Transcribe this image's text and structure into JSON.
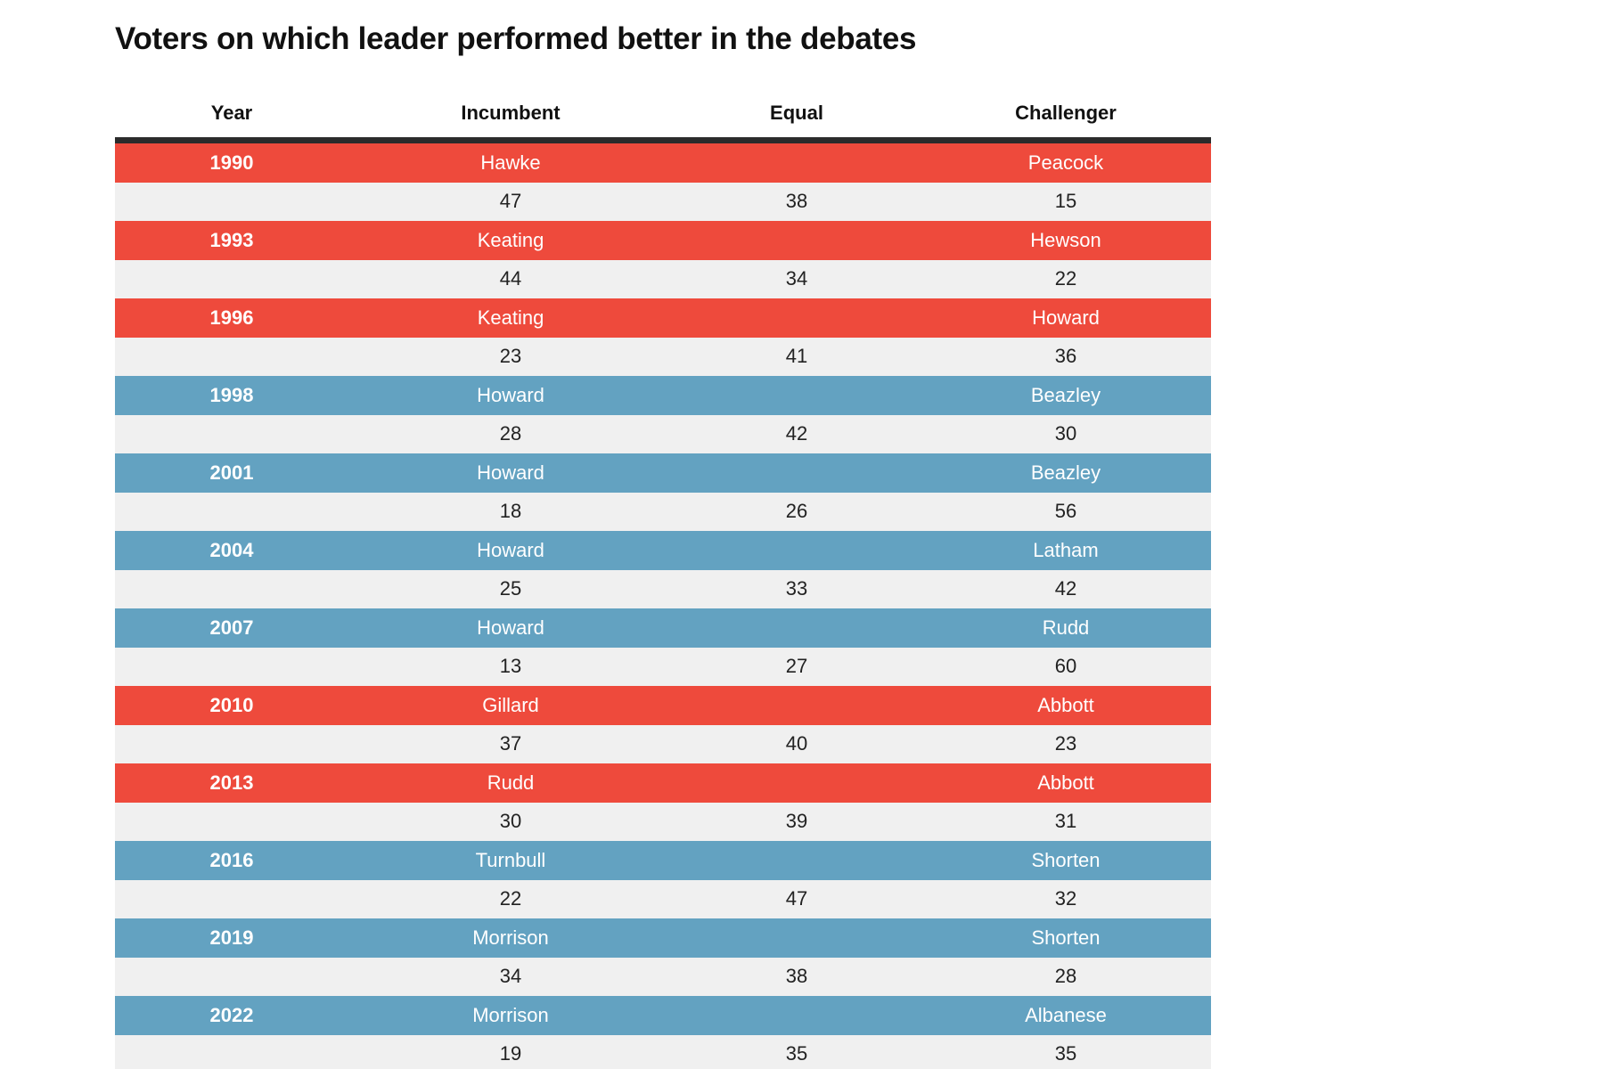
{
  "chart_data": {
    "type": "table",
    "title": "Voters on which leader performed better in the debates",
    "columns": [
      "Year",
      "Incumbent",
      "Equal",
      "Challenger"
    ],
    "party_colors": {
      "red": "#ee4a3c",
      "blue": "#63a2c1"
    },
    "rows": [
      {
        "year": "1990",
        "incumbent": "Hawke",
        "challenger": "Peacock",
        "color": "#ee4a3c",
        "values": [
          "47",
          "38",
          "15"
        ]
      },
      {
        "year": "1993",
        "incumbent": "Keating",
        "challenger": "Hewson",
        "color": "#ee4a3c",
        "values": [
          "44",
          "34",
          "22"
        ]
      },
      {
        "year": "1996",
        "incumbent": "Keating",
        "challenger": "Howard",
        "color": "#ee4a3c",
        "values": [
          "23",
          "41",
          "36"
        ]
      },
      {
        "year": "1998",
        "incumbent": "Howard",
        "challenger": "Beazley",
        "color": "#63a2c1",
        "values": [
          "28",
          "42",
          "30"
        ]
      },
      {
        "year": "2001",
        "incumbent": "Howard",
        "challenger": "Beazley",
        "color": "#63a2c1",
        "values": [
          "18",
          "26",
          "56"
        ]
      },
      {
        "year": "2004",
        "incumbent": "Howard",
        "challenger": "Latham",
        "color": "#63a2c1",
        "values": [
          "25",
          "33",
          "42"
        ]
      },
      {
        "year": "2007",
        "incumbent": "Howard",
        "challenger": "Rudd",
        "color": "#63a2c1",
        "values": [
          "13",
          "27",
          "60"
        ]
      },
      {
        "year": "2010",
        "incumbent": "Gillard",
        "challenger": "Abbott",
        "color": "#ee4a3c",
        "values": [
          "37",
          "40",
          "23"
        ]
      },
      {
        "year": "2013",
        "incumbent": "Rudd",
        "challenger": "Abbott",
        "color": "#ee4a3c",
        "values": [
          "30",
          "39",
          "31"
        ]
      },
      {
        "year": "2016",
        "incumbent": "Turnbull",
        "challenger": "Shorten",
        "color": "#63a2c1",
        "values": [
          "22",
          "47",
          "32"
        ]
      },
      {
        "year": "2019",
        "incumbent": "Morrison",
        "challenger": "Shorten",
        "color": "#63a2c1",
        "values": [
          "34",
          "38",
          "28"
        ]
      },
      {
        "year": "2022",
        "incumbent": "Morrison",
        "challenger": "Albanese",
        "color": "#63a2c1",
        "values": [
          "19",
          "35",
          "35"
        ]
      }
    ]
  }
}
